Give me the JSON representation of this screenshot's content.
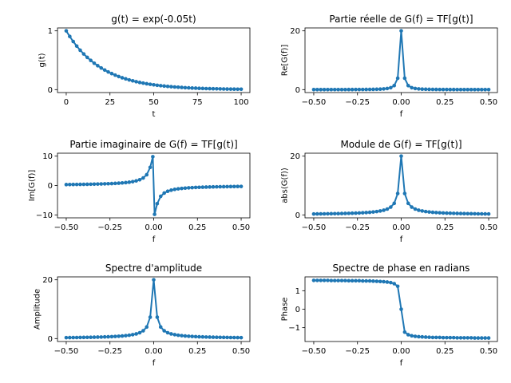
{
  "figure": {
    "series_color": "#1f77b4"
  },
  "chart_data": [
    {
      "type": "line",
      "title": "g(t) = exp(-0.05t)",
      "xlabel": "t",
      "ylabel": "g(t)",
      "xlim": [
        -5,
        105
      ],
      "ylim": [
        -0.05,
        1.05
      ],
      "xticks": [
        0,
        25,
        50,
        75,
        100
      ],
      "xtick_labels": [
        "0",
        "25",
        "50",
        "75",
        "100"
      ],
      "yticks": [
        0,
        1
      ],
      "ytick_labels": [
        "0",
        "1"
      ],
      "marker": "dot",
      "x": [
        0,
        2,
        4,
        6,
        8,
        10,
        12,
        14,
        16,
        18,
        20,
        22,
        24,
        26,
        28,
        30,
        32,
        34,
        36,
        38,
        40,
        42,
        44,
        46,
        48,
        50,
        52,
        54,
        56,
        58,
        60,
        62,
        64,
        66,
        68,
        70,
        72,
        74,
        76,
        78,
        80,
        82,
        84,
        86,
        88,
        90,
        92,
        94,
        96,
        98,
        100
      ],
      "y": [
        1.0,
        0.905,
        0.819,
        0.741,
        0.67,
        0.607,
        0.549,
        0.497,
        0.449,
        0.407,
        0.368,
        0.333,
        0.301,
        0.273,
        0.247,
        0.223,
        0.202,
        0.183,
        0.165,
        0.15,
        0.135,
        0.122,
        0.111,
        0.1,
        0.091,
        0.082,
        0.074,
        0.067,
        0.061,
        0.055,
        0.05,
        0.045,
        0.041,
        0.037,
        0.033,
        0.03,
        0.027,
        0.025,
        0.022,
        0.02,
        0.018,
        0.017,
        0.015,
        0.014,
        0.012,
        0.011,
        0.01,
        0.009,
        0.008,
        0.007,
        0.007
      ]
    },
    {
      "type": "line",
      "title": "Partie réelle de G(f) = TF[g(t)]",
      "xlabel": "f",
      "ylabel": "Re[G(f)]",
      "xlim": [
        -0.55,
        0.55
      ],
      "ylim": [
        -1.0,
        21.0
      ],
      "xticks": [
        -0.5,
        -0.25,
        0,
        0.25,
        0.5
      ],
      "xtick_labels": [
        "−0.50",
        "−0.25",
        "0.00",
        "0.25",
        "0.50"
      ],
      "yticks": [
        0,
        20
      ],
      "ytick_labels": [
        "0",
        "20"
      ],
      "marker": "dot",
      "x": [
        -0.5,
        -0.48,
        -0.46,
        -0.44,
        -0.42,
        -0.4,
        -0.38,
        -0.36,
        -0.34,
        -0.32,
        -0.3,
        -0.28,
        -0.26,
        -0.24,
        -0.22,
        -0.2,
        -0.18,
        -0.16,
        -0.14,
        -0.12,
        -0.1,
        -0.08,
        -0.06,
        -0.04,
        -0.02,
        0.0,
        0.02,
        0.04,
        0.06,
        0.08,
        0.1,
        0.12,
        0.14,
        0.16,
        0.18,
        0.2,
        0.22,
        0.24,
        0.26,
        0.28,
        0.3,
        0.32,
        0.34,
        0.36,
        0.38,
        0.4,
        0.42,
        0.44,
        0.46,
        0.48,
        0.5
      ],
      "y": [
        0.01,
        0.01,
        0.01,
        0.01,
        0.01,
        0.02,
        0.02,
        0.02,
        0.02,
        0.02,
        0.03,
        0.03,
        0.04,
        0.04,
        0.05,
        0.06,
        0.08,
        0.1,
        0.13,
        0.17,
        0.25,
        0.38,
        0.66,
        1.37,
        3.88,
        20.0,
        3.88,
        1.37,
        0.66,
        0.38,
        0.25,
        0.17,
        0.13,
        0.1,
        0.08,
        0.06,
        0.05,
        0.04,
        0.04,
        0.03,
        0.03,
        0.02,
        0.02,
        0.02,
        0.02,
        0.02,
        0.01,
        0.01,
        0.01,
        0.01,
        0.01
      ]
    },
    {
      "type": "line",
      "title": "Partie imaginaire de G(f) = TF[g(t)]",
      "xlabel": "f",
      "ylabel": "Im[G(f)]",
      "xlim": [
        -0.55,
        0.55
      ],
      "ylim": [
        -11,
        11
      ],
      "xticks": [
        -0.5,
        -0.25,
        0,
        0.25,
        0.5
      ],
      "xtick_labels": [
        "−0.50",
        "−0.25",
        "0.00",
        "0.25",
        "0.50"
      ],
      "yticks": [
        -10,
        0,
        10
      ],
      "ytick_labels": [
        "−10",
        "0",
        "10"
      ],
      "marker": "dot",
      "x": [
        -0.5,
        -0.48,
        -0.46,
        -0.44,
        -0.42,
        -0.4,
        -0.38,
        -0.36,
        -0.34,
        -0.32,
        -0.3,
        -0.28,
        -0.26,
        -0.24,
        -0.22,
        -0.2,
        -0.18,
        -0.16,
        -0.14,
        -0.12,
        -0.1,
        -0.08,
        -0.06,
        -0.04,
        -0.02,
        -0.005,
        0.005,
        0.02,
        0.04,
        0.06,
        0.08,
        0.1,
        0.12,
        0.14,
        0.16,
        0.18,
        0.2,
        0.22,
        0.24,
        0.26,
        0.28,
        0.3,
        0.32,
        0.34,
        0.36,
        0.38,
        0.4,
        0.42,
        0.44,
        0.46,
        0.48,
        0.5
      ],
      "y": [
        0.32,
        0.33,
        0.35,
        0.36,
        0.38,
        0.4,
        0.42,
        0.44,
        0.47,
        0.5,
        0.53,
        0.57,
        0.61,
        0.66,
        0.72,
        0.79,
        0.88,
        0.99,
        1.13,
        1.32,
        1.58,
        1.96,
        2.57,
        3.68,
        6.18,
        9.8,
        -9.8,
        -6.18,
        -3.68,
        -2.57,
        -1.96,
        -1.58,
        -1.32,
        -1.13,
        -0.99,
        -0.88,
        -0.79,
        -0.72,
        -0.66,
        -0.61,
        -0.57,
        -0.53,
        -0.5,
        -0.47,
        -0.44,
        -0.42,
        -0.4,
        -0.38,
        -0.36,
        -0.35,
        -0.33,
        -0.32
      ]
    },
    {
      "type": "line",
      "title": "Module de G(f) = TF[g(t)]",
      "xlabel": "f",
      "ylabel": "abs(G(f))",
      "xlim": [
        -0.55,
        0.55
      ],
      "ylim": [
        -1.0,
        21.0
      ],
      "xticks": [
        -0.5,
        -0.25,
        0,
        0.25,
        0.5
      ],
      "xtick_labels": [
        "−0.50",
        "−0.25",
        "0.00",
        "0.25",
        "0.50"
      ],
      "yticks": [
        0,
        20
      ],
      "ytick_labels": [
        "0",
        "20"
      ],
      "marker": "dot",
      "x": [
        -0.5,
        -0.48,
        -0.46,
        -0.44,
        -0.42,
        -0.4,
        -0.38,
        -0.36,
        -0.34,
        -0.32,
        -0.3,
        -0.28,
        -0.26,
        -0.24,
        -0.22,
        -0.2,
        -0.18,
        -0.16,
        -0.14,
        -0.12,
        -0.1,
        -0.08,
        -0.06,
        -0.04,
        -0.02,
        0.0,
        0.02,
        0.04,
        0.06,
        0.08,
        0.1,
        0.12,
        0.14,
        0.16,
        0.18,
        0.2,
        0.22,
        0.24,
        0.26,
        0.28,
        0.3,
        0.32,
        0.34,
        0.36,
        0.38,
        0.4,
        0.42,
        0.44,
        0.46,
        0.48,
        0.5
      ],
      "y": [
        0.32,
        0.33,
        0.35,
        0.36,
        0.38,
        0.4,
        0.42,
        0.44,
        0.47,
        0.5,
        0.53,
        0.57,
        0.61,
        0.66,
        0.72,
        0.79,
        0.88,
        0.99,
        1.14,
        1.33,
        1.59,
        1.99,
        2.65,
        3.93,
        7.3,
        20.0,
        7.3,
        3.93,
        2.65,
        1.99,
        1.59,
        1.33,
        1.14,
        0.99,
        0.88,
        0.79,
        0.72,
        0.66,
        0.61,
        0.57,
        0.53,
        0.5,
        0.47,
        0.44,
        0.42,
        0.4,
        0.38,
        0.36,
        0.35,
        0.33,
        0.32
      ]
    },
    {
      "type": "line",
      "title": "Spectre d'amplitude",
      "xlabel": "f",
      "ylabel": "Amplitude",
      "xlim": [
        -0.55,
        0.55
      ],
      "ylim": [
        -1.0,
        21.0
      ],
      "xticks": [
        -0.5,
        -0.25,
        0,
        0.25,
        0.5
      ],
      "xtick_labels": [
        "−0.50",
        "−0.25",
        "0.00",
        "0.25",
        "0.50"
      ],
      "yticks": [
        0,
        20
      ],
      "ytick_labels": [
        "0",
        "20"
      ],
      "marker": "dot",
      "x": [
        -0.5,
        -0.48,
        -0.46,
        -0.44,
        -0.42,
        -0.4,
        -0.38,
        -0.36,
        -0.34,
        -0.32,
        -0.3,
        -0.28,
        -0.26,
        -0.24,
        -0.22,
        -0.2,
        -0.18,
        -0.16,
        -0.14,
        -0.12,
        -0.1,
        -0.08,
        -0.06,
        -0.04,
        -0.02,
        0.0,
        0.02,
        0.04,
        0.06,
        0.08,
        0.1,
        0.12,
        0.14,
        0.16,
        0.18,
        0.2,
        0.22,
        0.24,
        0.26,
        0.28,
        0.3,
        0.32,
        0.34,
        0.36,
        0.38,
        0.4,
        0.42,
        0.44,
        0.46,
        0.48,
        0.5
      ],
      "y": [
        0.32,
        0.33,
        0.35,
        0.36,
        0.38,
        0.4,
        0.42,
        0.44,
        0.47,
        0.5,
        0.53,
        0.57,
        0.61,
        0.66,
        0.72,
        0.79,
        0.88,
        0.99,
        1.14,
        1.33,
        1.59,
        1.99,
        2.65,
        3.93,
        7.3,
        20.0,
        7.3,
        3.93,
        2.65,
        1.99,
        1.59,
        1.33,
        1.14,
        0.99,
        0.88,
        0.79,
        0.72,
        0.66,
        0.61,
        0.57,
        0.53,
        0.5,
        0.47,
        0.44,
        0.42,
        0.4,
        0.38,
        0.36,
        0.35,
        0.33,
        0.32
      ]
    },
    {
      "type": "line",
      "title": "Spectre de phase en radians",
      "xlabel": "f",
      "ylabel": "Phase",
      "xlim": [
        -0.55,
        0.55
      ],
      "ylim": [
        -1.75,
        1.75
      ],
      "xticks": [
        -0.5,
        -0.25,
        0,
        0.25,
        0.5
      ],
      "xtick_labels": [
        "−0.50",
        "−0.25",
        "0.00",
        "0.25",
        "0.50"
      ],
      "yticks": [
        -1,
        0,
        1
      ],
      "ytick_labels": [
        "−1",
        "0",
        "1"
      ],
      "marker": "dot",
      "x": [
        -0.5,
        -0.48,
        -0.46,
        -0.44,
        -0.42,
        -0.4,
        -0.38,
        -0.36,
        -0.34,
        -0.32,
        -0.3,
        -0.28,
        -0.26,
        -0.24,
        -0.22,
        -0.2,
        -0.18,
        -0.16,
        -0.14,
        -0.12,
        -0.1,
        -0.08,
        -0.06,
        -0.04,
        -0.02,
        0.0,
        0.02,
        0.04,
        0.06,
        0.08,
        0.1,
        0.12,
        0.14,
        0.16,
        0.18,
        0.2,
        0.22,
        0.24,
        0.26,
        0.28,
        0.3,
        0.32,
        0.34,
        0.36,
        0.38,
        0.4,
        0.42,
        0.44,
        0.46,
        0.48,
        0.5
      ],
      "y": [
        1.56,
        1.56,
        1.56,
        1.56,
        1.56,
        1.55,
        1.55,
        1.55,
        1.55,
        1.55,
        1.54,
        1.54,
        1.54,
        1.54,
        1.53,
        1.53,
        1.53,
        1.52,
        1.51,
        1.5,
        1.49,
        1.47,
        1.44,
        1.38,
        1.24,
        0.0,
        -1.24,
        -1.38,
        -1.44,
        -1.47,
        -1.49,
        -1.5,
        -1.51,
        -1.52,
        -1.53,
        -1.53,
        -1.53,
        -1.54,
        -1.54,
        -1.54,
        -1.54,
        -1.55,
        -1.55,
        -1.55,
        -1.55,
        -1.55,
        -1.56,
        -1.56,
        -1.56,
        -1.56,
        -1.56
      ]
    }
  ]
}
